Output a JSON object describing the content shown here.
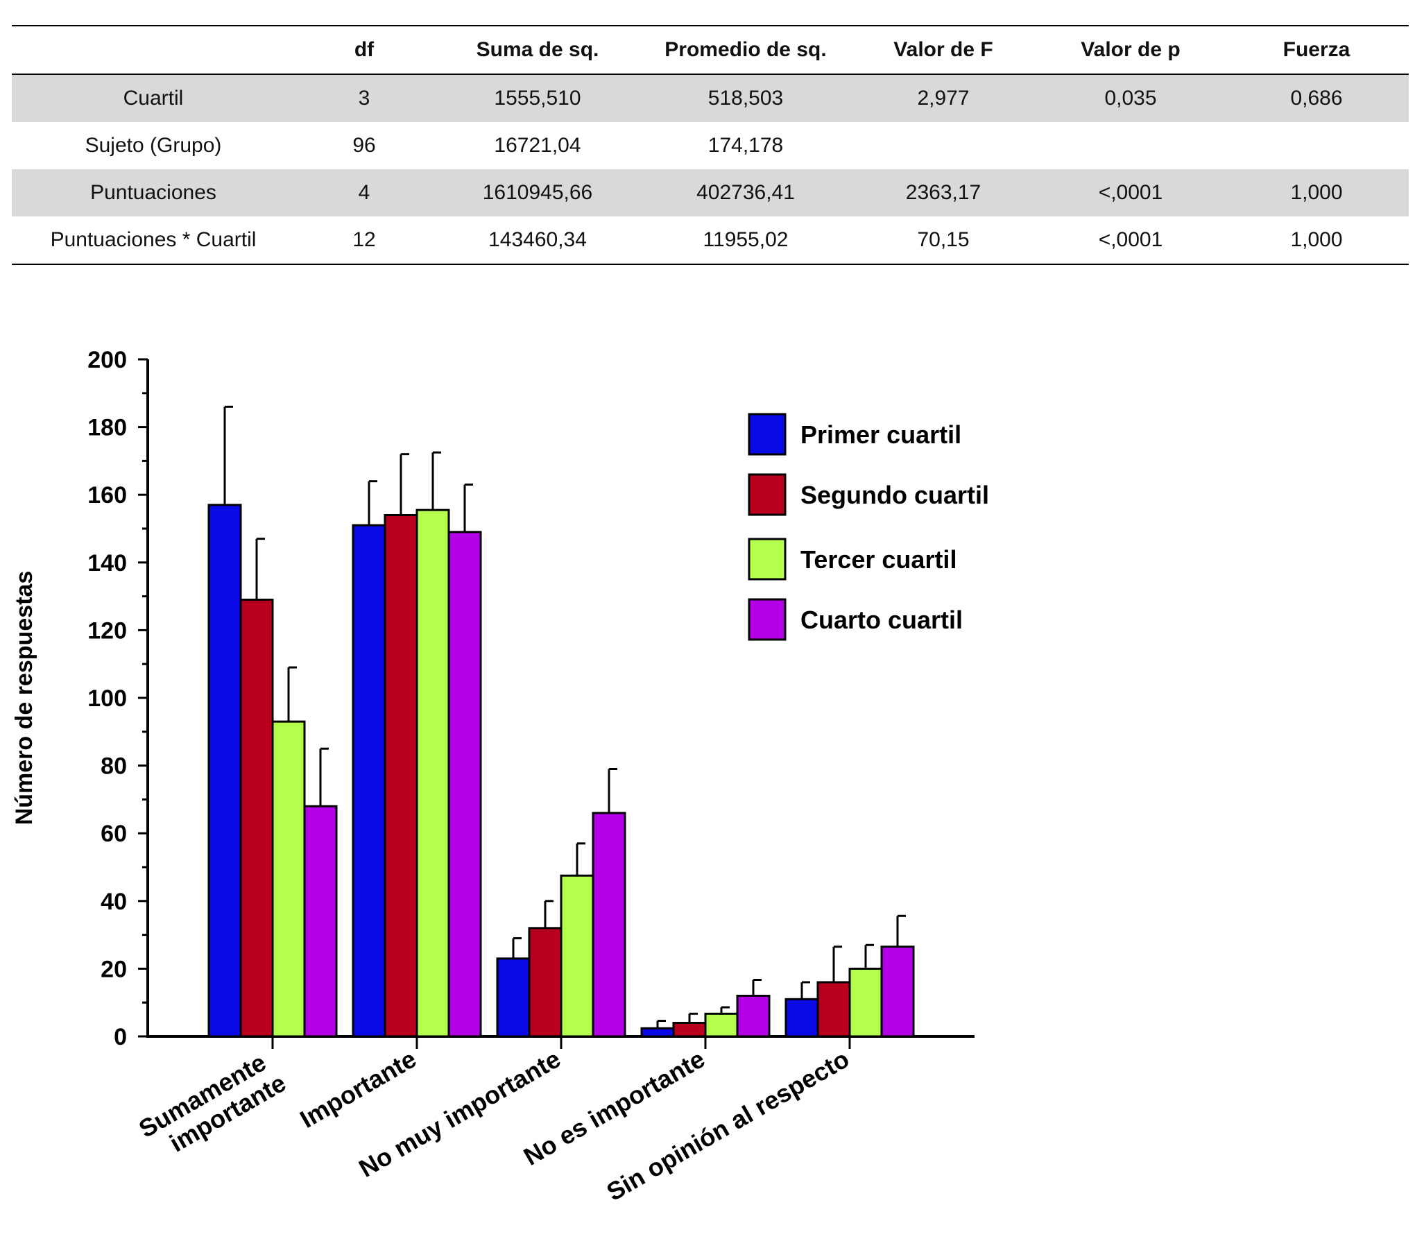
{
  "table": {
    "headers": [
      "",
      "df",
      "Suma de sq.",
      "Promedio de sq.",
      "Valor de F",
      "Valor de p",
      "Fuerza"
    ],
    "rows": [
      [
        "Cuartil",
        "3",
        "1555,510",
        "518,503",
        "2,977",
        "0,035",
        "0,686"
      ],
      [
        "Sujeto (Grupo)",
        "96",
        "16721,04",
        "174,178",
        "",
        "",
        ""
      ],
      [
        "Puntuaciones",
        "4",
        "1610945,66",
        "402736,41",
        "2363,17",
        "<,0001",
        "1,000"
      ],
      [
        "Puntuaciones * Cuartil",
        "12",
        "143460,34",
        "11955,02",
        "70,15",
        "<,0001",
        "1,000"
      ]
    ]
  },
  "chart_data": {
    "type": "bar",
    "ylabel": "Número de respuestas",
    "xlabel": "",
    "ylim": [
      0,
      200
    ],
    "yticks": [
      "0",
      "20",
      "40",
      "60",
      "80",
      "100",
      "120",
      "140",
      "160",
      "180",
      "200"
    ],
    "categories": [
      "Sumamente importante",
      "Importante",
      "No muy importante",
      "No es importante",
      "Sin opinión al respecto"
    ],
    "category_lines": [
      [
        "Sumamente",
        "importante"
      ],
      [
        "Importante"
      ],
      [
        "No muy importante"
      ],
      [
        "No es importante"
      ],
      [
        "Sin opinión al respecto"
      ]
    ],
    "legend_position": "top-right",
    "series": [
      {
        "name": "Primer cuartil",
        "color": "#0a0ae6",
        "values": [
          157,
          151,
          23,
          2.4,
          11
        ],
        "error_upper": [
          186,
          164,
          29,
          4.6,
          16
        ]
      },
      {
        "name": "Segundo cuartil",
        "color": "#b8001e",
        "values": [
          129,
          154,
          32,
          4,
          16
        ],
        "error_upper": [
          147,
          172,
          40,
          6.7,
          26.5
        ]
      },
      {
        "name": "Tercer cuartil",
        "color": "#b5ff4d",
        "values": [
          93,
          155.5,
          47.5,
          6.7,
          20
        ],
        "error_upper": [
          109,
          172.5,
          57,
          8.6,
          27
        ]
      },
      {
        "name": "Cuarto cuartil",
        "color": "#b400e6",
        "values": [
          68,
          149,
          66,
          12,
          26.5
        ],
        "error_upper": [
          85,
          163,
          79,
          16.7,
          35.6
        ]
      }
    ]
  }
}
